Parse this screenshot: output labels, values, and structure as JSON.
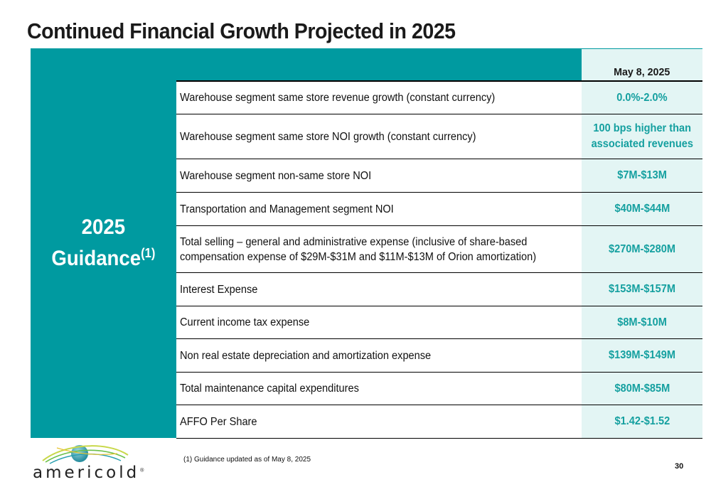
{
  "slide": {
    "title": "Continued Financial Growth Projected in 2025",
    "page_number": "30",
    "footnote": "(1) Guidance updated as of May 8, 2025"
  },
  "side_panel": {
    "line1": "2025",
    "line2": "Guidance",
    "superscript": "(1)"
  },
  "table": {
    "column_header": "May 8, 2025",
    "rows": [
      {
        "description": [
          "Warehouse segment same store revenue growth (constant currency)"
        ],
        "value": [
          "0.0%-2.0%"
        ]
      },
      {
        "description": [
          "Warehouse segment same store NOI growth (constant currency)"
        ],
        "value": [
          "100 bps higher than",
          "associated revenues"
        ]
      },
      {
        "description": [
          "Warehouse segment non-same store NOI"
        ],
        "value": [
          "$7M-$13M"
        ]
      },
      {
        "description": [
          "Transportation and Management segment NOI"
        ],
        "value": [
          "$40M-$44M"
        ]
      },
      {
        "description": [
          "Total selling – general and administrative expense (inclusive of share-based",
          "compensation expense of $29M-$31M and $11M-$13M of Orion amortization)"
        ],
        "value": [
          "$270M-$280M"
        ]
      },
      {
        "description": [
          "Interest Expense"
        ],
        "value": [
          "$153M-$157M"
        ]
      },
      {
        "description": [
          "Current income tax expense"
        ],
        "value": [
          "$8M-$10M"
        ]
      },
      {
        "description": [
          "Non real estate depreciation and amortization expense"
        ],
        "value": [
          "$139M-$149M"
        ]
      },
      {
        "description": [
          "Total maintenance capital expenditures"
        ],
        "value": [
          "$80M-$85M"
        ]
      },
      {
        "description": [
          "AFFO Per Share"
        ],
        "value": [
          "$1.42-$1.52"
        ]
      }
    ]
  },
  "logo": {
    "text": "americold",
    "registered_mark": "®"
  },
  "colors": {
    "accent_teal": "#009aa0",
    "value_text": "#15a0a0",
    "value_cell_bg": "#e3f5f4"
  }
}
